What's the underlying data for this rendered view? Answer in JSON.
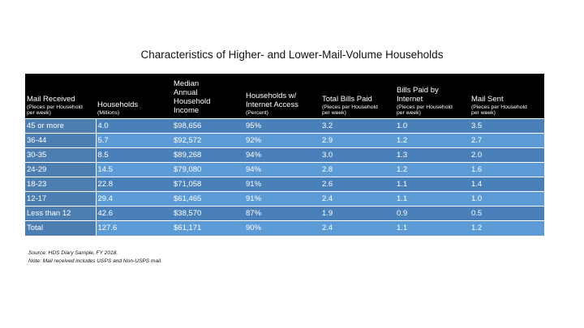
{
  "title": "Characteristics of Higher- and Lower-Mail-Volume Households",
  "headers": [
    {
      "main": "Mail Received",
      "sub": "(Pieces per Household\nper week)"
    },
    {
      "main": "Households",
      "sub": "(Millions)"
    },
    {
      "main": "Median\nAnnual\nHousehold\nIncome",
      "sub": ""
    },
    {
      "main": "Households w/\nInternet Access",
      "sub": "(Percent)"
    },
    {
      "main": "Total Bills Paid",
      "sub": "(Pieces per Household\nper week)"
    },
    {
      "main": "Bills Paid by\nInternet",
      "sub": "(Pieces per Household\nper week)"
    },
    {
      "main": "Mail Sent",
      "sub": "(Pieces per Household\nper week)"
    }
  ],
  "rows": [
    [
      "45 or more",
      "4.0",
      "$98,656",
      "95%",
      "3.2",
      "1.0",
      "3.5"
    ],
    [
      "36-44",
      "5.7",
      "$92,572",
      "92%",
      "2.9",
      "1.2",
      "2.7"
    ],
    [
      "30-35",
      "8.5",
      "$89,268",
      "94%",
      "3.0",
      "1.3",
      "2.0"
    ],
    [
      "24-29",
      "14.5",
      "$79,080",
      "94%",
      "2.8",
      "1.2",
      "1.6"
    ],
    [
      "18-23",
      "22.8",
      "$71,058",
      "91%",
      "2.6",
      "1.1",
      "1.4"
    ],
    [
      "12-17",
      "29.4",
      "$61,465",
      "91%",
      "2.4",
      "1.1",
      "1.0"
    ],
    [
      "Less than 12",
      "42.6",
      "$38,570",
      "87%",
      "1.9",
      "0.9",
      "0.5"
    ],
    [
      "Total",
      "127.6",
      "$61,171",
      "90%",
      "2.4",
      "1.1",
      "1.2"
    ]
  ],
  "colors": {
    "header_bg": "#000000",
    "row_dark": "#4a80b9",
    "row_light": "#5d9bd6",
    "first_col": "#4d7eb2",
    "text": "#ffffff"
  },
  "footnotes": {
    "source": "Source: HDS Diary Sample, FY 2018.",
    "note": "Note: Mail received includes USPS and Non-USPS mail."
  }
}
